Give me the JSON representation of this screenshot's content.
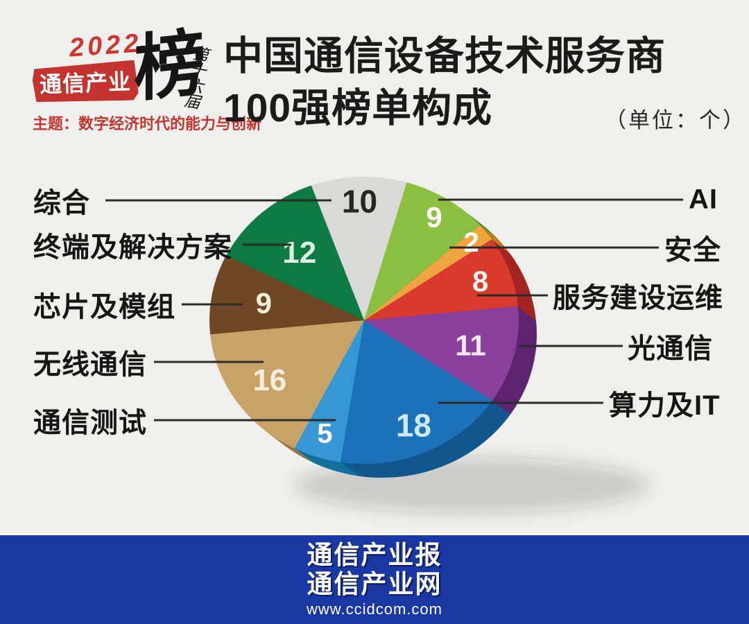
{
  "page": {
    "background": "#efefed"
  },
  "logo": {
    "year": "2022",
    "brand": "通信产业",
    "bang": "榜",
    "edition": "第十六届",
    "theme": "主题：数字经济时代的能力与创新",
    "accent_color": "#c5332e"
  },
  "header": {
    "title_line1": "中国通信设备技术服务商",
    "title_line2": "100强榜单构成",
    "unit_note": "（单位：个）"
  },
  "chart_data": {
    "type": "pie",
    "style": "3d-exploded-none",
    "title": "中国通信设备技术服务商100强榜单构成",
    "unit": "个",
    "total": 100,
    "start_angle_deg": -20,
    "legend_position": "callouts-left-right",
    "slices": [
      {
        "id": "comprehensive",
        "label": "综合",
        "value": 10,
        "color": "#d9d9d7",
        "side_color": "#b7b7b4",
        "number_color": "#262626",
        "callout_side": "left"
      },
      {
        "id": "ai",
        "label": "AI",
        "value": 9,
        "color": "#8abf3f",
        "side_color": "#55922c",
        "number_color": "#ffffff",
        "callout_side": "right"
      },
      {
        "id": "security",
        "label": "安全",
        "value": 2,
        "color": "#f0a440",
        "side_color": "#c17d22",
        "number_color": "#ffffff",
        "callout_side": "right"
      },
      {
        "id": "service-build-ops",
        "label": "服务建设运维",
        "value": 8,
        "color": "#d93a2e",
        "side_color": "#a32420",
        "number_color": "#fdf3ea",
        "callout_side": "right"
      },
      {
        "id": "optical-comm",
        "label": "光通信",
        "value": 11,
        "color": "#8a3f9c",
        "side_color": "#5e2370",
        "number_color": "#f5e9f7",
        "callout_side": "right"
      },
      {
        "id": "computing-it",
        "label": "算力及IT",
        "value": 18,
        "color": "#1b72b8",
        "side_color": "#11568f",
        "number_color": "#cfe8f8",
        "callout_side": "right"
      },
      {
        "id": "comm-testing",
        "label": "通信测试",
        "value": 5,
        "color": "#3598d4",
        "side_color": "#13719b",
        "number_color": "#ffffff",
        "callout_side": "left"
      },
      {
        "id": "wireless-comm",
        "label": "无线通信",
        "value": 16,
        "color": "#c8a368",
        "side_color": "#9a7741",
        "number_color": "#f6eedb",
        "callout_side": "left"
      },
      {
        "id": "chips-modules",
        "label": "芯片及模组",
        "value": 9,
        "color": "#6f4723",
        "side_color": "#4a2d12",
        "number_color": "#f6eedb",
        "callout_side": "left"
      },
      {
        "id": "terminals-solutions",
        "label": "终端及解决方案",
        "value": 12,
        "color": "#0e7b42",
        "side_color": "#08562c",
        "number_color": "#def0e3",
        "callout_side": "left"
      }
    ]
  },
  "footer": {
    "line1": "通信产业报",
    "line2": "通信产业网",
    "url": "www.ccidcom.com",
    "background": "#1a38a4"
  }
}
